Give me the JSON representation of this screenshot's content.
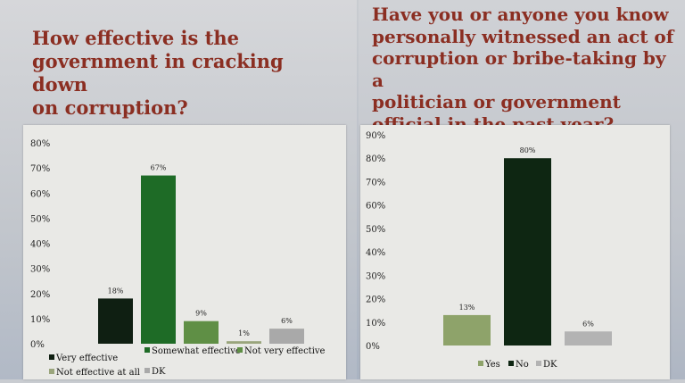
{
  "chart_data": [
    {
      "type": "bar",
      "title": "How effective is the government in cracking down on corruption?",
      "title_lines": [
        "How effective is the",
        "government in cracking down",
        "on corruption?"
      ],
      "categories": [
        "Very effective",
        "Somewhat effective",
        "Not very effective",
        "Not effective at all",
        "DK"
      ],
      "values": [
        18,
        67,
        9,
        1,
        6
      ],
      "value_labels": [
        "18%",
        "67%",
        "9%",
        "1%",
        "6%"
      ],
      "colors": [
        "#0f1f12",
        "#1e6b26",
        "#5f8f45",
        "#9aa57c",
        "#a9a9a9"
      ],
      "ylim": [
        0,
        80
      ],
      "yticks": [
        "0%",
        "10%",
        "20%",
        "30%",
        "40%",
        "50%",
        "60%",
        "70%",
        "80%"
      ],
      "legend_placement": "bottom",
      "grid": false
    },
    {
      "type": "bar",
      "title": "Have you or anyone you know personally witnessed an act of corruption or bribe-taking by a politician or government official in the past year?",
      "title_lines": [
        "Have you or anyone you know",
        "personally witnessed an act of",
        "corruption or bribe-taking by a",
        "politician or government",
        "official in the past year?"
      ],
      "categories": [
        "Yes",
        "No",
        "DK"
      ],
      "values": [
        13,
        80,
        6
      ],
      "value_labels": [
        "13%",
        "80%",
        "6%"
      ],
      "colors": [
        "#8ea36a",
        "#0e2612",
        "#b3b3b3"
      ],
      "ylim": [
        0,
        90
      ],
      "yticks": [
        "0%",
        "10%",
        "20%",
        "30%",
        "40%",
        "50%",
        "60%",
        "70%",
        "80%",
        "90%"
      ],
      "legend_placement": "bottom",
      "grid": false
    }
  ]
}
